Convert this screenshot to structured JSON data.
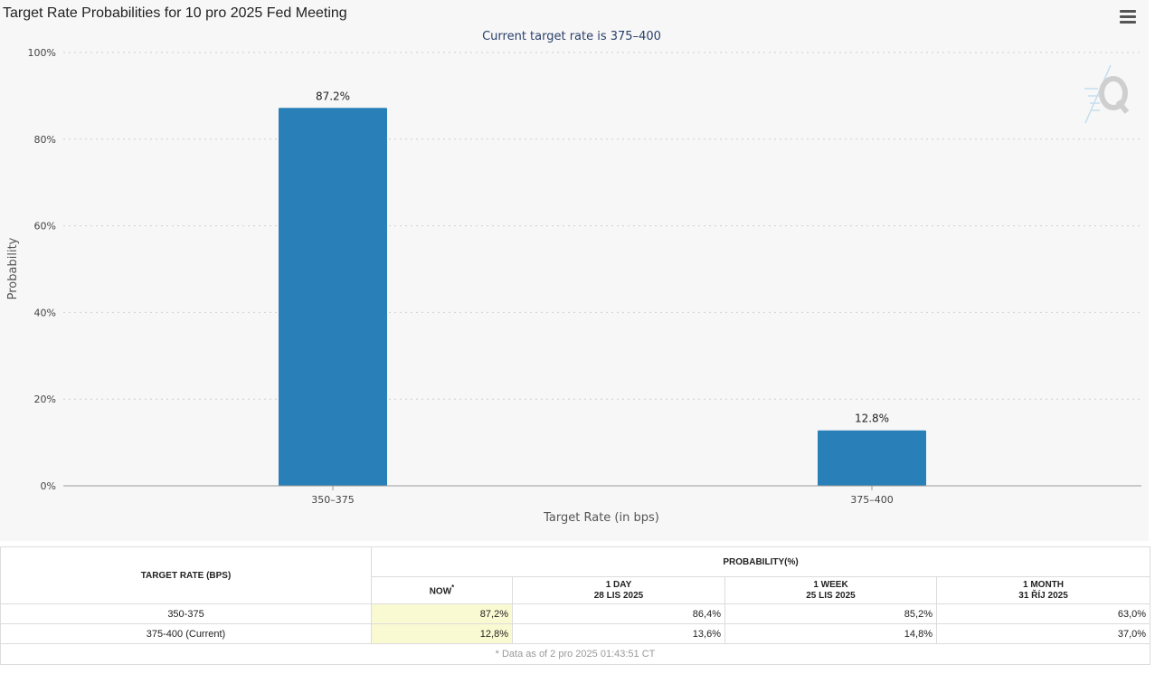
{
  "page_title": "Target Rate Probabilities for 10 pro 2025 Fed Meeting",
  "colors": {
    "bar": "#2980b9",
    "now_highlight": "#fafad2",
    "background": "#f7f7f7"
  },
  "chart_data": {
    "type": "bar",
    "subtitle": "Current target rate is 375–400",
    "categories": [
      "350–375",
      "375–400"
    ],
    "values": [
      87.2,
      12.8
    ],
    "data_labels": [
      "87.2%",
      "12.8%"
    ],
    "xlabel": "Target Rate (in bps)",
    "ylabel": "Probability",
    "ylim": [
      0,
      100
    ],
    "yticks": [
      0,
      20,
      40,
      60,
      80,
      100
    ],
    "ytick_labels": [
      "0%",
      "20%",
      "40%",
      "60%",
      "80%",
      "100%"
    ],
    "grid": true,
    "legend": "none"
  },
  "table": {
    "col_header_rate": "TARGET RATE (BPS)",
    "group_header": "PROBABILITY(%)",
    "columns": [
      {
        "label": "NOW",
        "marker": "*",
        "date": ""
      },
      {
        "label": "1 DAY",
        "date": "28 LIS 2025"
      },
      {
        "label": "1 WEEK",
        "date": "25 LIS 2025"
      },
      {
        "label": "1 MONTH",
        "date": "31 ŘÍJ 2025"
      }
    ],
    "rows": [
      {
        "rate": "350-375",
        "values": [
          "87,2%",
          "86,4%",
          "85,2%",
          "63,0%"
        ]
      },
      {
        "rate": "375-400 (Current)",
        "values": [
          "12,8%",
          "13,6%",
          "14,8%",
          "37,0%"
        ]
      }
    ],
    "footnote": "* Data as of 2 pro 2025 01:43:51 CT"
  }
}
